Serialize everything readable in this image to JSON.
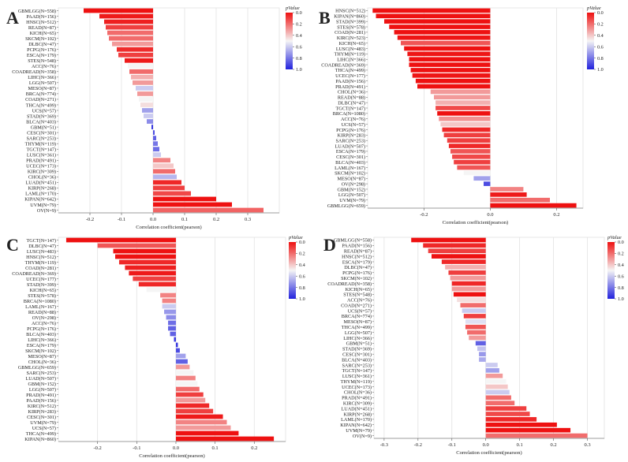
{
  "legend_title": "pValue",
  "legend_ticks": [
    "0.0",
    "0.2",
    "0.4",
    "0.6",
    "0.8",
    "1.0"
  ],
  "colors": {
    "red": "#ee1111",
    "white": "#f5f5f5",
    "blue": "#2222dd",
    "grid": "#e2e2e2",
    "axis": "#555555"
  },
  "chart_data": [
    {
      "id": "A",
      "type": "bar",
      "orientation": "horizontal",
      "xlabel": "Correlation coefficient(pearson)",
      "xlim": [
        -0.3,
        0.4
      ],
      "xticks": [
        -0.2,
        -0.1,
        0.0,
        0.1,
        0.2,
        0.3
      ],
      "xtick_labels": [
        "-0.2",
        "-0.1",
        "0.0",
        "0.1",
        "0.2",
        "0.3"
      ],
      "categories": [
        "GBMLGG(N=558)",
        "PAAD(N=156)",
        "HNSC(N=512)",
        "READ(N=87)",
        "KICH(N=65)",
        "SKCM(N=102)",
        "DLBC(N=47)",
        "PCPG(N=176)",
        "ESCA(N=179)",
        "STES(N=548)",
        "ACC(N=76)",
        "COADREAD(N=358)",
        "LIHC(N=366)",
        "LGG(N=507)",
        "MESO(N=87)",
        "BRCA(N=774)",
        "COAD(N=271)",
        "THCA(N=499)",
        "UCS(N=57)",
        "STAD(N=369)",
        "BLCA(N=403)",
        "GBM(N=51)",
        "CESC(N=301)",
        "SARC(N=253)",
        "THYM(N=119)",
        "TGCT(N=147)",
        "LUSC(N=361)",
        "PRAD(N=491)",
        "UCEC(N=173)",
        "KIRC(N=309)",
        "CHOL(N=36)",
        "LUAD(N=451)",
        "KIRP(N=268)",
        "LAML(N=170)",
        "KIPAN(N=642)",
        "UVM(N=79)",
        "OV(N=9)"
      ],
      "values": [
        -0.22,
        -0.17,
        -0.155,
        -0.15,
        -0.145,
        -0.14,
        -0.13,
        -0.115,
        -0.11,
        -0.09,
        -0.08,
        -0.075,
        -0.07,
        -0.065,
        -0.055,
        -0.05,
        -0.045,
        -0.04,
        -0.035,
        -0.03,
        -0.02,
        -0.005,
        0.005,
        0.01,
        0.015,
        0.02,
        0.025,
        0.055,
        0.065,
        0.07,
        0.075,
        0.09,
        0.1,
        0.12,
        0.2,
        0.25,
        0.35
      ],
      "pvalues": [
        0.0,
        0.02,
        0.03,
        0.1,
        0.2,
        0.2,
        0.3,
        0.06,
        0.1,
        0.02,
        0.5,
        0.2,
        0.35,
        0.3,
        0.6,
        0.3,
        0.5,
        0.45,
        0.7,
        0.6,
        0.75,
        0.95,
        0.9,
        0.85,
        0.8,
        0.82,
        0.6,
        0.25,
        0.4,
        0.2,
        0.65,
        0.05,
        0.1,
        0.12,
        0.0,
        0.0,
        0.18
      ]
    },
    {
      "id": "B",
      "type": "bar",
      "orientation": "horizontal",
      "xlabel": "Correlation coefficient(pearson)",
      "xlim": [
        -0.37,
        0.28
      ],
      "xticks": [
        -0.2,
        0.0,
        0.2
      ],
      "xtick_labels": [
        "-0.2",
        "0.0",
        "0.2"
      ],
      "categories": [
        "HNSC(N=512)",
        "KIPAN(N=860)",
        "STAD(N=399)",
        "STES(N=578)",
        "COAD(N=281)",
        "KIRC(N=523)",
        "KICH(N=65)",
        "LUSC(N=483)",
        "THYM(N=119)",
        "LIHC(N=366)",
        "COADREAD(N=369)",
        "THCA(N=499)",
        "UCEC(N=177)",
        "PAAD(N=156)",
        "PRAD(N=491)",
        "CHOL(N=36)",
        "READ(N=88)",
        "DLBC(N=47)",
        "TGCT(N=147)",
        "BRCA(N=1080)",
        "ACC(N=76)",
        "UCS(N=57)",
        "PCPG(N=176)",
        "KIRP(N=283)",
        "SARC(N=253)",
        "LUAD(N=507)",
        "ESCA(N=179)",
        "CESC(N=301)",
        "BLCA(N=403)",
        "LAML(N=167)",
        "SKCM(N=102)",
        "MESO(N=87)",
        "OV(N=298)",
        "GBM(N=152)",
        "LGG(N=507)",
        "UVM(N=79)",
        "GBMLGG(N=659)"
      ],
      "values": [
        -0.355,
        -0.345,
        -0.32,
        -0.305,
        -0.29,
        -0.28,
        -0.27,
        -0.26,
        -0.25,
        -0.245,
        -0.245,
        -0.24,
        -0.235,
        -0.225,
        -0.22,
        -0.18,
        -0.17,
        -0.165,
        -0.165,
        -0.16,
        -0.155,
        -0.15,
        -0.145,
        -0.14,
        -0.13,
        -0.125,
        -0.12,
        -0.115,
        -0.11,
        -0.1,
        -0.08,
        -0.05,
        -0.02,
        0.1,
        0.11,
        0.18,
        0.26
      ],
      "pvalues": [
        0,
        0,
        0,
        0,
        0,
        0.01,
        0.15,
        0,
        0.01,
        0,
        0,
        0,
        0.01,
        0,
        0,
        0.3,
        0.3,
        0.35,
        0.12,
        0,
        0.28,
        0.4,
        0.05,
        0.1,
        0.1,
        0.05,
        0.15,
        0.12,
        0.1,
        0.15,
        0.5,
        0.7,
        0.9,
        0.25,
        0.02,
        0.2,
        0
      ]
    },
    {
      "id": "C",
      "type": "bar",
      "orientation": "horizontal",
      "xlabel": "Correlation coefficient(pearson)",
      "xlim": [
        -0.3,
        0.28
      ],
      "xticks": [
        -0.2,
        -0.1,
        0.0,
        0.1,
        0.2
      ],
      "xtick_labels": [
        "-0.2",
        "-0.1",
        "0.0",
        "0.1",
        "0.2"
      ],
      "categories": [
        "TGCT(N=147)",
        "DLBC(N=47)",
        "LUSC(N=483)",
        "HNSC(N=512)",
        "THYM(N=119)",
        "COAD(N=281)",
        "COADREAD(N=369)",
        "UCEC(N=177)",
        "STAD(N=399)",
        "KICH(N=65)",
        "STES(N=578)",
        "BRCA(N=1080)",
        "LAML(N=167)",
        "READ(N=88)",
        "OV(N=298)",
        "ACC(N=76)",
        "PCPG(N=176)",
        "BLCA(N=403)",
        "LIHC(N=366)",
        "ESCA(N=179)",
        "SKCM(N=102)",
        "MESO(N=87)",
        "CHOL(N=36)",
        "GBMLGG(N=659)",
        "SARC(N=253)",
        "LUAD(N=507)",
        "GBM(N=152)",
        "LGG(N=507)",
        "PRAD(N=491)",
        "PAAD(N=156)",
        "KIRC(N=512)",
        "KIRP(N=283)",
        "CESC(N=301)",
        "UVM(N=79)",
        "UCS(N=57)",
        "THCA(N=499)",
        "KIPAN(N=860)"
      ],
      "values": [
        -0.28,
        -0.2,
        -0.16,
        -0.155,
        -0.145,
        -0.13,
        -0.12,
        -0.11,
        -0.095,
        -0.075,
        -0.04,
        -0.035,
        -0.035,
        -0.03,
        -0.025,
        -0.02,
        -0.02,
        -0.015,
        -0.005,
        0.005,
        0.01,
        0.025,
        0.03,
        0.035,
        0.045,
        0.05,
        0.055,
        0.06,
        0.07,
        0.075,
        0.085,
        0.095,
        0.12,
        0.13,
        0.14,
        0.16,
        0.25
      ],
      "pvalues": [
        0,
        0.15,
        0,
        0,
        0.05,
        0.03,
        0.02,
        0.1,
        0.05,
        0.5,
        0.25,
        0.25,
        0.6,
        0.72,
        0.75,
        0.82,
        0.85,
        0.85,
        0.95,
        0.95,
        0.9,
        0.7,
        0.85,
        0.3,
        0.5,
        0.25,
        0.5,
        0.2,
        0.1,
        0.3,
        0.05,
        0.1,
        0.02,
        0.25,
        0.3,
        0,
        0
      ]
    },
    {
      "id": "D",
      "type": "bar",
      "orientation": "horizontal",
      "xlabel": "Correlation coefficient(pearson)",
      "xlim": [
        -0.33,
        0.35
      ],
      "xticks": [
        -0.3,
        -0.2,
        -0.1,
        0.0,
        0.1,
        0.2,
        0.3
      ],
      "xtick_labels": [
        "-0.3",
        "-0.2",
        "-0.1",
        "0.0",
        "0.1",
        "0.2",
        "0.3"
      ],
      "categories": [
        "GBMLGG(N=558)",
        "PAAD(N=156)",
        "READ(N=87)",
        "HNSC(N=512)",
        "ESCA(N=179)",
        "DLBC(N=47)",
        "PCPG(N=176)",
        "SKCM(N=102)",
        "COADREAD(N=358)",
        "KICH(N=65)",
        "STES(N=548)",
        "ACC(N=76)",
        "COAD(N=271)",
        "UCS(N=57)",
        "BRCA(N=774)",
        "MESO(N=87)",
        "THCA(N=499)",
        "LGG(N=507)",
        "LIHC(N=366)",
        "GBM(N=51)",
        "STAD(N=369)",
        "CESC(N=301)",
        "BLCA(N=403)",
        "SARC(N=253)",
        "TGCT(N=147)",
        "LUSC(N=361)",
        "THYM(N=119)",
        "UCEC(N=173)",
        "CHOL(N=36)",
        "PRAD(N=491)",
        "KIRC(N=309)",
        "LUAD(N=451)",
        "KIRP(N=268)",
        "LAML(N=170)",
        "KIPAN(N=642)",
        "UVM(N=79)",
        "OV(N=9)"
      ],
      "values": [
        -0.22,
        -0.185,
        -0.17,
        -0.16,
        -0.13,
        -0.12,
        -0.11,
        -0.105,
        -0.1,
        -0.1,
        -0.095,
        -0.085,
        -0.075,
        -0.07,
        -0.065,
        -0.06,
        -0.06,
        -0.055,
        -0.05,
        -0.03,
        -0.025,
        -0.02,
        -0.02,
        0.035,
        0.04,
        0.05,
        0.06,
        0.065,
        0.07,
        0.075,
        0.085,
        0.12,
        0.13,
        0.15,
        0.21,
        0.25,
        0.3
      ],
      "pvalues": [
        0,
        0.05,
        0.1,
        0,
        0.05,
        0.35,
        0.1,
        0.3,
        0.05,
        0.3,
        0,
        0.45,
        0.2,
        0.6,
        0.1,
        0.55,
        0.15,
        0.2,
        0.3,
        0.85,
        0.62,
        0.72,
        0.68,
        0.6,
        0.7,
        0.3,
        0.5,
        0.4,
        0.6,
        0.2,
        0.2,
        0.1,
        0.12,
        0.05,
        0,
        0,
        0.2
      ]
    }
  ]
}
